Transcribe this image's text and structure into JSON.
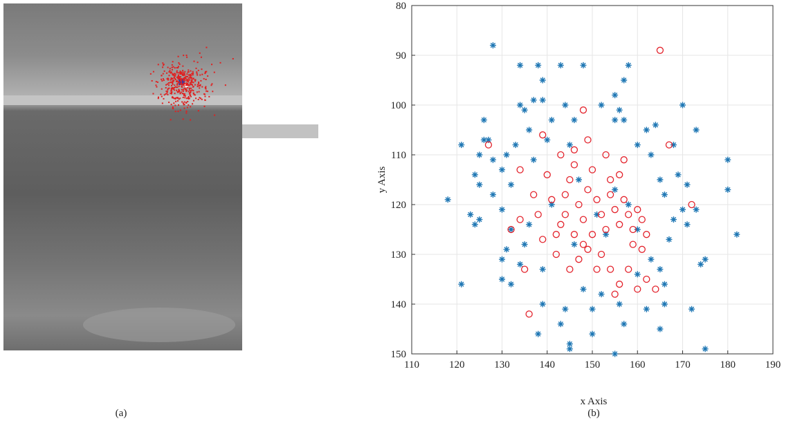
{
  "chart_data": {
    "type": "scatter",
    "x_label": "x Axis",
    "y_label": "y Axis",
    "panel_labels": [
      "(a)",
      "(b)"
    ],
    "xlim": [
      110,
      190
    ],
    "xticks": [
      110,
      120,
      130,
      140,
      150,
      160,
      170,
      180,
      190
    ],
    "ylim": [
      80,
      150
    ],
    "yticks": [
      80,
      90,
      100,
      110,
      120,
      130,
      140,
      150
    ],
    "y_reversed": true,
    "grid": true,
    "series": [
      {
        "marker": "asterisk",
        "color": "#1f77b4",
        "x": [
          128,
          134,
          138,
          143,
          148,
          158,
          139,
          157,
          155,
          170,
          134,
          135,
          137,
          139,
          144,
          152,
          156,
          126,
          141,
          146,
          155,
          157,
          162,
          164,
          173,
          136,
          121,
          126,
          127,
          133,
          140,
          145,
          160,
          168,
          131,
          125,
          128,
          180,
          124,
          130,
          137,
          163,
          165,
          169,
          171,
          118,
          125,
          132,
          128,
          166,
          180,
          130,
          170,
          173,
          125,
          123,
          124,
          132,
          136,
          168,
          171,
          182,
          131,
          135,
          167,
          130,
          134,
          139,
          163,
          165,
          174,
          175,
          121,
          130,
          132,
          160,
          166,
          172,
          139,
          144,
          150,
          156,
          162,
          166,
          138,
          143,
          145,
          150,
          155,
          157,
          165,
          175,
          145,
          148,
          152,
          146,
          151,
          153,
          141,
          158,
          160,
          147,
          155
        ],
        "values": [
          88,
          92,
          92,
          92,
          92,
          92,
          95,
          95,
          98,
          100,
          100,
          101,
          99,
          99,
          100,
          100,
          101,
          103,
          103,
          103,
          103,
          103,
          105,
          104,
          105,
          105,
          108,
          107,
          107,
          108,
          107,
          108,
          108,
          108,
          110,
          110,
          111,
          111,
          114,
          113,
          111,
          110,
          115,
          114,
          116,
          119,
          116,
          116,
          118,
          118,
          117,
          121,
          121,
          121,
          123,
          122,
          124,
          125,
          124,
          123,
          124,
          126,
          129,
          128,
          127,
          131,
          132,
          133,
          131,
          133,
          132,
          131,
          136,
          135,
          136,
          134,
          136,
          141,
          140,
          141,
          141,
          140,
          141,
          140,
          146,
          144,
          148,
          146,
          150,
          144,
          145,
          149,
          149,
          137,
          138,
          128,
          122,
          126,
          120,
          120,
          125,
          115,
          117
        ]
      },
      {
        "marker": "circle",
        "color": "#e3222b",
        "x": [
          165,
          148,
          172,
          167,
          127,
          139,
          136,
          135,
          134,
          132,
          134,
          139,
          142,
          143,
          144,
          145,
          146,
          147,
          148,
          149,
          150,
          151,
          152,
          153,
          154,
          155,
          156,
          157,
          158,
          159,
          160,
          161,
          162,
          150,
          149,
          147,
          145,
          152,
          154,
          156,
          158,
          160,
          162,
          164,
          155,
          146,
          149,
          153,
          157,
          143,
          140,
          141,
          138,
          142,
          144,
          146,
          148,
          151,
          159,
          161,
          137,
          156,
          154
        ],
        "values": [
          89,
          101,
          120,
          108,
          108,
          106,
          142,
          133,
          123,
          125,
          113,
          127,
          130,
          124,
          118,
          115,
          112,
          120,
          123,
          117,
          113,
          119,
          122,
          125,
          118,
          121,
          124,
          119,
          122,
          125,
          121,
          123,
          126,
          126,
          129,
          131,
          133,
          130,
          133,
          136,
          133,
          137,
          135,
          137,
          138,
          109,
          107,
          110,
          111,
          110,
          114,
          119,
          122,
          126,
          122,
          126,
          128,
          133,
          128,
          129,
          118,
          114,
          115
        ]
      }
    ]
  }
}
